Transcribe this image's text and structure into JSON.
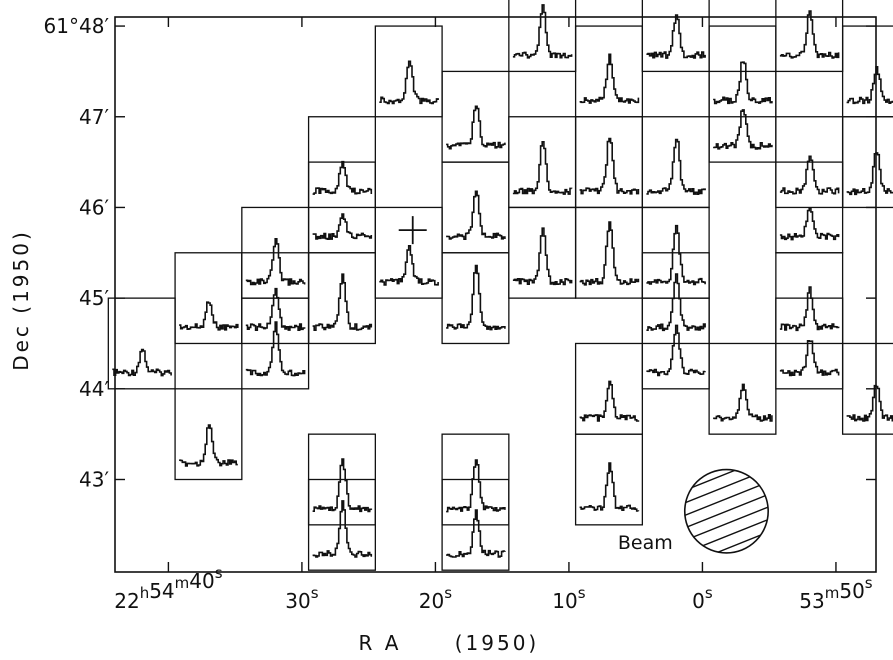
{
  "chart_data": {
    "type": "spectral-line grid map",
    "xlabel_main": "R A",
    "xlabel_epoch": "(1950)",
    "ylabel": "Dec (1950)",
    "x_ticks": [
      {
        "ra_sec": 40,
        "parts": [
          [
            "22",
            "h"
          ],
          [
            "54",
            "m"
          ],
          [
            "40",
            "s"
          ]
        ]
      },
      {
        "ra_sec": 30,
        "parts": [
          [
            "30",
            "s"
          ]
        ]
      },
      {
        "ra_sec": 20,
        "parts": [
          [
            "20",
            "s"
          ]
        ]
      },
      {
        "ra_sec": 10,
        "parts": [
          [
            "10",
            "s"
          ]
        ]
      },
      {
        "ra_sec": 0,
        "parts": [
          [
            "0",
            "s"
          ]
        ]
      },
      {
        "ra_sec": -10,
        "parts": [
          [
            "53",
            "m"
          ],
          [
            "50",
            "s"
          ]
        ]
      }
    ],
    "y_ticks": [
      {
        "dec_arcmin": 48,
        "text": "61°48′"
      },
      {
        "dec_arcmin": 47,
        "text": "47′"
      },
      {
        "dec_arcmin": 46,
        "text": "46′"
      },
      {
        "dec_arcmin": 45,
        "text": "45′"
      },
      {
        "dec_arcmin": 44,
        "text": "44′"
      },
      {
        "dec_arcmin": 43,
        "text": "43′"
      }
    ],
    "xlim_ra_sec": [
      44,
      -13
    ],
    "ylim_dec_arcmin": [
      41.98,
      48.1
    ],
    "beam_label": "Beam",
    "beam": {
      "ra_sec": -1.8,
      "dec_arcmin": 42.65,
      "diameter_arcmin": 0.92,
      "hatched": true
    },
    "pointing_cross": {
      "ra_sec": 21.7,
      "dec_arcmin": 45.75
    },
    "spectra": [
      {
        "ra_sec": 42,
        "dec_arcmin": 44.5,
        "peak": 0.35
      },
      {
        "ra_sec": 37,
        "dec_arcmin": 45.0,
        "peak": 0.4
      },
      {
        "ra_sec": 37,
        "dec_arcmin": 43.5,
        "peak": 0.6
      },
      {
        "ra_sec": 32,
        "dec_arcmin": 45.5,
        "peak": 0.6
      },
      {
        "ra_sec": 32,
        "dec_arcmin": 45.0,
        "peak": 0.55
      },
      {
        "ra_sec": 32,
        "dec_arcmin": 44.5,
        "peak": 0.7
      },
      {
        "ra_sec": 27,
        "dec_arcmin": 46.5,
        "peak": 0.45
      },
      {
        "ra_sec": 27,
        "dec_arcmin": 46.0,
        "peak": 0.35
      },
      {
        "ra_sec": 27,
        "dec_arcmin": 45.0,
        "peak": 0.8
      },
      {
        "ra_sec": 27,
        "dec_arcmin": 43.0,
        "peak": 0.7
      },
      {
        "ra_sec": 27,
        "dec_arcmin": 42.5,
        "peak": 0.75
      },
      {
        "ra_sec": 22,
        "dec_arcmin": 47.5,
        "peak": 0.6
      },
      {
        "ra_sec": 22,
        "dec_arcmin": 45.5,
        "peak": 0.5
      },
      {
        "ra_sec": 17,
        "dec_arcmin": 47.0,
        "peak": 0.6
      },
      {
        "ra_sec": 17,
        "dec_arcmin": 46.0,
        "peak": 0.65
      },
      {
        "ra_sec": 17,
        "dec_arcmin": 45.0,
        "peak": 0.95
      },
      {
        "ra_sec": 17,
        "dec_arcmin": 43.0,
        "peak": 0.75
      },
      {
        "ra_sec": 17,
        "dec_arcmin": 42.5,
        "peak": 0.6
      },
      {
        "ra_sec": 12,
        "dec_arcmin": 48.0,
        "peak": 0.7
      },
      {
        "ra_sec": 12,
        "dec_arcmin": 46.5,
        "peak": 0.75
      },
      {
        "ra_sec": 12,
        "dec_arcmin": 45.5,
        "peak": 0.75
      },
      {
        "ra_sec": 7,
        "dec_arcmin": 47.5,
        "peak": 0.65
      },
      {
        "ra_sec": 7,
        "dec_arcmin": 46.5,
        "peak": 0.8
      },
      {
        "ra_sec": 7,
        "dec_arcmin": 45.5,
        "peak": 0.9
      },
      {
        "ra_sec": 7,
        "dec_arcmin": 44.0,
        "peak": 0.55
      },
      {
        "ra_sec": 7,
        "dec_arcmin": 43.0,
        "peak": 0.65
      },
      {
        "ra_sec": 2,
        "dec_arcmin": 48.0,
        "peak": 0.6
      },
      {
        "ra_sec": 2,
        "dec_arcmin": 46.5,
        "peak": 0.8
      },
      {
        "ra_sec": 2,
        "dec_arcmin": 45.5,
        "peak": 0.85
      },
      {
        "ra_sec": 2,
        "dec_arcmin": 45.0,
        "peak": 0.75
      },
      {
        "ra_sec": 2,
        "dec_arcmin": 44.5,
        "peak": 0.7
      },
      {
        "ra_sec": -3,
        "dec_arcmin": 47.5,
        "peak": 0.6
      },
      {
        "ra_sec": -3,
        "dec_arcmin": 47.0,
        "peak": 0.55
      },
      {
        "ra_sec": -3,
        "dec_arcmin": 44.0,
        "peak": 0.5
      },
      {
        "ra_sec": -8,
        "dec_arcmin": 48.0,
        "peak": 0.65
      },
      {
        "ra_sec": -8,
        "dec_arcmin": 46.5,
        "peak": 0.55
      },
      {
        "ra_sec": -8,
        "dec_arcmin": 46.0,
        "peak": 0.45
      },
      {
        "ra_sec": -8,
        "dec_arcmin": 45.0,
        "peak": 0.55
      },
      {
        "ra_sec": -8,
        "dec_arcmin": 44.5,
        "peak": 0.5
      },
      {
        "ra_sec": -13,
        "dec_arcmin": 47.5,
        "peak": 0.5
      },
      {
        "ra_sec": -13,
        "dec_arcmin": 46.5,
        "peak": 0.6
      },
      {
        "ra_sec": -13,
        "dec_arcmin": 44.0,
        "peak": 0.5
      },
      {
        "ra_sec": -18,
        "dec_arcmin": 45.0,
        "peak": 0.4
      }
    ]
  }
}
